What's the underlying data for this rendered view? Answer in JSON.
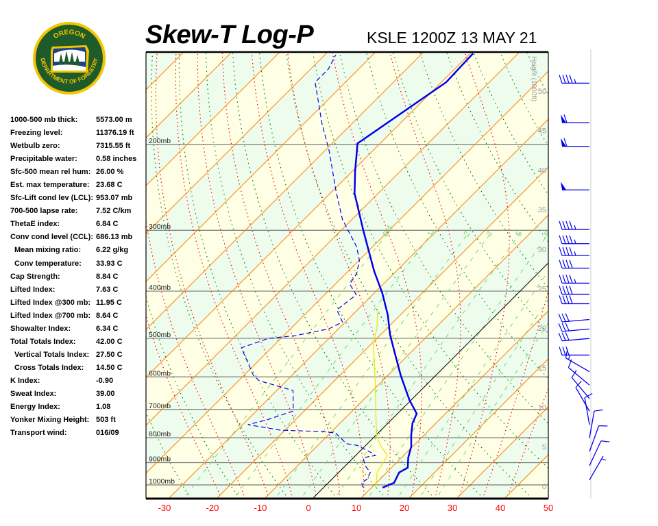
{
  "logo": {
    "top_text": "OREGON",
    "bottom_text": "DEPARTMENT OF FORESTRY",
    "colors": {
      "ring": "#f2c500",
      "field": "#1f5a2a"
    }
  },
  "header": {
    "title": "Skew-T Log-P",
    "station": "KSLE 1200Z 13 MAY 21"
  },
  "stats": [
    {
      "label": "1000-500 mb thick:",
      "value": "5573.00 m"
    },
    {
      "label": "Freezing level:",
      "value": "11376.19 ft"
    },
    {
      "label": "Wetbulb zero:",
      "value": "7315.55 ft"
    },
    {
      "label": "Precipitable water:",
      "value": "0.58 inches"
    },
    {
      "label": "Sfc-500 mean rel hum:",
      "value": "26.00 %"
    },
    {
      "label": "Est. max temperature:",
      "value": "23.68 C"
    },
    {
      "label": "Sfc-Lift cond lev (LCL):",
      "value": "953.07 mb"
    },
    {
      "label": "700-500 lapse rate:",
      "value": "7.52 C/km"
    },
    {
      "label": "ThetaE index:",
      "value": "6.84 C"
    },
    {
      "label": "Conv cond level (CCL):",
      "value": "686.13 mb"
    },
    {
      "label": "Mean mixing ratio:",
      "value": "6.22 g/kg",
      "indent": true
    },
    {
      "label": "Conv temperature:",
      "value": "33.93 C",
      "indent": true
    },
    {
      "label": "Cap Strength:",
      "value": "8.84 C"
    },
    {
      "label": "Lifted Index:",
      "value": "7.63 C"
    },
    {
      "label": "Lifted Index @300 mb:",
      "value": "11.95 C"
    },
    {
      "label": "Lifted Index @700 mb:",
      "value": "8.64 C"
    },
    {
      "label": "Showalter Index:",
      "value": "6.34 C"
    },
    {
      "label": "Total Totals Index:",
      "value": "42.00 C"
    },
    {
      "label": "Vertical Totals Index:",
      "value": "27.50 C",
      "indent": true
    },
    {
      "label": "Cross Totals Index:",
      "value": "14.50 C",
      "indent": true
    },
    {
      "label": "K Index:",
      "value": "-0.90"
    },
    {
      "label": "Sweat Index:",
      "value": "39.00"
    },
    {
      "label": "Energy Index:",
      "value": "1.08"
    },
    {
      "label": "Yonker Mixing Height:",
      "value": "503 ft"
    },
    {
      "label": "Transport wind:",
      "value": "016/09"
    }
  ],
  "chart_data": {
    "type": "line",
    "subtype": "skew-t log-p",
    "x_axis": {
      "ticks": [
        -30,
        -20,
        -10,
        0,
        10,
        20,
        30,
        40,
        50
      ],
      "unit": "C",
      "tick_color": "#ff0000"
    },
    "y_axis": {
      "scale": "log",
      "pressure_levels": [
        200,
        300,
        400,
        500,
        600,
        700,
        800,
        900,
        1000
      ],
      "level_suffix": "mb",
      "range_mb": [
        1030,
        130
      ]
    },
    "height_axis": {
      "label": "Height (1000ft)",
      "ticks": [
        0,
        5,
        10,
        15,
        20,
        25,
        30,
        35,
        40,
        45,
        50
      ]
    },
    "mixing_ratio_labels": [
      0.4,
      1,
      2,
      3,
      5,
      8
    ],
    "mixing_ratio_lines": [
      0.4,
      1,
      2,
      3,
      5,
      8,
      12,
      16,
      20
    ],
    "colors": {
      "temperature": "#0000ee",
      "dewpoint": "#0000ee",
      "wetbulb": "#e6e600",
      "isotherm": "#ff8000",
      "zero_isotherm": "#000000",
      "dry_adiabat": "#008000",
      "moist_adiabat": "#ff0000",
      "mixing_ratio": "#66dd66",
      "band_a": "#ffffe6",
      "band_b": "#eefcee"
    },
    "series": [
      {
        "key": "temperature",
        "style": "solid-thick",
        "points": [
          [
            1013,
            12.3
          ],
          [
            990,
            13.7
          ],
          [
            943,
            12.6
          ],
          [
            922,
            13.4
          ],
          [
            879,
            11.4
          ],
          [
            834,
            9.7
          ],
          [
            790,
            7.3
          ],
          [
            747,
            5.1
          ],
          [
            714,
            4.0
          ],
          [
            669,
            -0.4
          ],
          [
            596,
            -7.3
          ],
          [
            544,
            -12.4
          ],
          [
            491,
            -18.1
          ],
          [
            448,
            -22.6
          ],
          [
            404,
            -28.3
          ],
          [
            364,
            -34.6
          ],
          [
            324,
            -41.1
          ],
          [
            300,
            -45.4
          ],
          [
            252,
            -54.9
          ],
          [
            227,
            -59.4
          ],
          [
            199,
            -64.7
          ],
          [
            149,
            -59.0
          ],
          [
            130,
            -59.4
          ]
        ]
      },
      {
        "key": "dewpoint",
        "style": "dashed",
        "points": [
          [
            1013,
            8.3
          ],
          [
            990,
            6.9
          ],
          [
            974,
            7.3
          ],
          [
            943,
            6.6
          ],
          [
            913,
            4.1
          ],
          [
            879,
            2.0
          ],
          [
            870,
            4.1
          ],
          [
            856,
            2.3
          ],
          [
            829,
            -1.9
          ],
          [
            823,
            -4.4
          ],
          [
            782,
            -8.9
          ],
          [
            777,
            -12.0
          ],
          [
            772,
            -20.9
          ],
          [
            752,
            -28.9
          ],
          [
            735,
            -25.9
          ],
          [
            705,
            -22.3
          ],
          [
            640,
            -26.6
          ],
          [
            611,
            -35.7
          ],
          [
            596,
            -38.0
          ],
          [
            523,
            -46.3
          ],
          [
            500,
            -42.6
          ],
          [
            494,
            -37.7
          ],
          [
            478,
            -32.0
          ],
          [
            463,
            -30.6
          ],
          [
            437,
            -34.3
          ],
          [
            407,
            -33.4
          ],
          [
            387,
            -37.0
          ],
          [
            369,
            -37.7
          ],
          [
            346,
            -39.9
          ],
          [
            324,
            -43.4
          ],
          [
            285,
            -52.0
          ],
          [
            250,
            -59.1
          ],
          [
            206,
            -69.1
          ],
          [
            181,
            -76.3
          ],
          [
            149,
            -86.3
          ],
          [
            140,
            -86.3
          ],
          [
            131,
            -87.7
          ]
        ]
      },
      {
        "key": "wetbulb",
        "style": "solid-thin",
        "points": [
          [
            1013,
            10.9
          ],
          [
            943,
            8.0
          ],
          [
            870,
            6.6
          ],
          [
            829,
            3.0
          ],
          [
            790,
            0.1
          ],
          [
            705,
            -5.1
          ],
          [
            614,
            -11.3
          ],
          [
            510,
            -19.9
          ],
          [
            478,
            -22.0
          ],
          [
            435,
            -26.0
          ]
        ]
      }
    ],
    "winds": [
      [
        51,
        270,
        45
      ],
      [
        46,
        270,
        60
      ],
      [
        43,
        270,
        60
      ],
      [
        37.5,
        270,
        50
      ],
      [
        32.5,
        270,
        45
      ],
      [
        30.7,
        270,
        45
      ],
      [
        29.2,
        270,
        45
      ],
      [
        27.6,
        270,
        40
      ],
      [
        25.7,
        270,
        45
      ],
      [
        24.3,
        270,
        40
      ],
      [
        23.1,
        270,
        40
      ],
      [
        21.1,
        265,
        30
      ],
      [
        19.9,
        265,
        30
      ],
      [
        18.7,
        265,
        30
      ],
      [
        16.6,
        270,
        30
      ],
      [
        14.5,
        300,
        15
      ],
      [
        12.8,
        310,
        10
      ],
      [
        11.1,
        320,
        10
      ],
      [
        9.5,
        330,
        10
      ],
      [
        7.8,
        350,
        10
      ],
      [
        6.1,
        10,
        10
      ],
      [
        4.4,
        20,
        10
      ],
      [
        2.6,
        25,
        10
      ],
      [
        0.8,
        30,
        5
      ]
    ]
  }
}
